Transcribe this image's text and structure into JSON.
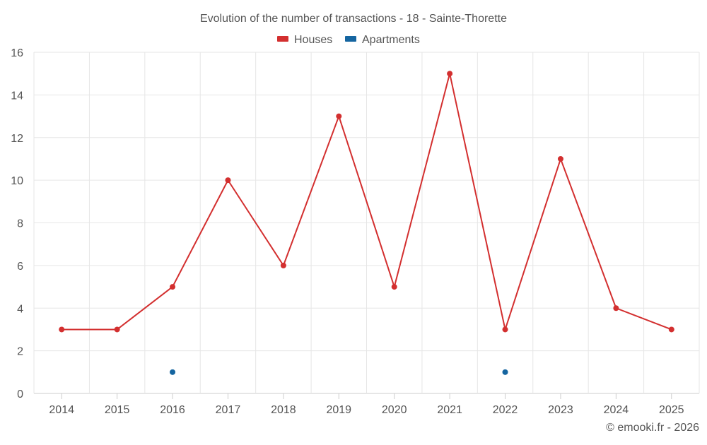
{
  "chart_data": {
    "type": "line",
    "title": "Evolution of the number of transactions - 18 - Sainte-Thorette",
    "categories": [
      "2014",
      "2015",
      "2016",
      "2017",
      "2018",
      "2019",
      "2020",
      "2021",
      "2022",
      "2023",
      "2024",
      "2025"
    ],
    "series": [
      {
        "name": "Houses",
        "color": "#d32f2f",
        "values": [
          3,
          3,
          5,
          10,
          6,
          13,
          5,
          15,
          3,
          11,
          4,
          3
        ]
      },
      {
        "name": "Apartments",
        "color": "#1565a0",
        "values": [
          null,
          null,
          1,
          null,
          null,
          null,
          null,
          null,
          1,
          null,
          null,
          null
        ]
      }
    ],
    "ylim": [
      0,
      16
    ],
    "yticks": [
      0,
      2,
      4,
      6,
      8,
      10,
      12,
      14,
      16
    ],
    "grid": true,
    "legend": "top-center",
    "xlabel": "",
    "ylabel": ""
  },
  "footer": {
    "credit": "© emooki.fr - 2026"
  },
  "colors": {
    "grid": "#e6e6e6",
    "axis": "#cccccc",
    "text": "#555555"
  }
}
